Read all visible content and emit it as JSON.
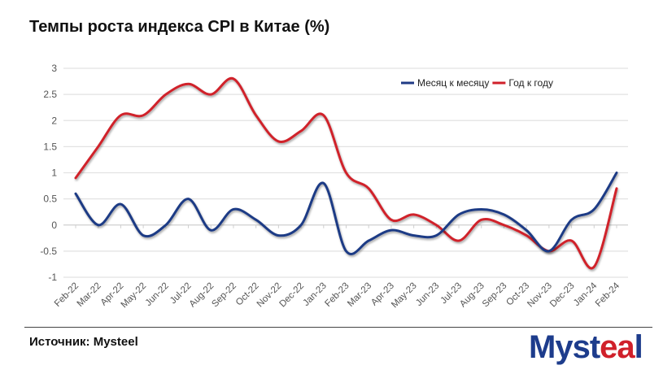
{
  "title": "Темпы роста индекса CPI в Китае (%)",
  "source": "Источник: Mysteel",
  "logo": {
    "text": "Mysteel"
  },
  "chart_data": {
    "type": "line",
    "title": "Темпы роста индекса CPI в Китае (%)",
    "xlabel": "",
    "ylabel": "",
    "ylim": [
      -1,
      3
    ],
    "yticks": [
      -1,
      -0.5,
      0,
      0.5,
      1,
      1.5,
      2,
      2.5,
      3
    ],
    "grid": true,
    "legend": "top-right",
    "categories": [
      "Feb-22",
      "Mar-22",
      "Apr-22",
      "May-22",
      "Jun-22",
      "Jul-22",
      "Aug-22",
      "Sep-22",
      "Oct-22",
      "Nov-22",
      "Dec-22",
      "Jan-23",
      "Feb-23",
      "Mar-23",
      "Apr-23",
      "May-23",
      "Jun-23",
      "Jul-23",
      "Aug-23",
      "Sep-23",
      "Oct-23",
      "Nov-23",
      "Dec-23",
      "Jan-24",
      "Feb-24"
    ],
    "series": [
      {
        "name": "Месяц к месяцу",
        "color": "#1f3a85",
        "values": [
          0.6,
          0,
          0.4,
          -0.2,
          0,
          0.5,
          -0.1,
          0.3,
          0.1,
          -0.2,
          0,
          0.8,
          -0.5,
          -0.3,
          -0.1,
          -0.2,
          -0.2,
          0.2,
          0.3,
          0.2,
          -0.1,
          -0.5,
          0.1,
          0.3,
          1.0
        ]
      },
      {
        "name": "Год к году",
        "color": "#d0202a",
        "values": [
          0.9,
          1.5,
          2.1,
          2.1,
          2.5,
          2.7,
          2.5,
          2.8,
          2.1,
          1.6,
          1.8,
          2.1,
          1.0,
          0.7,
          0.1,
          0.2,
          0,
          -0.3,
          0.1,
          0,
          -0.2,
          -0.5,
          -0.3,
          -0.8,
          0.7
        ]
      }
    ]
  }
}
